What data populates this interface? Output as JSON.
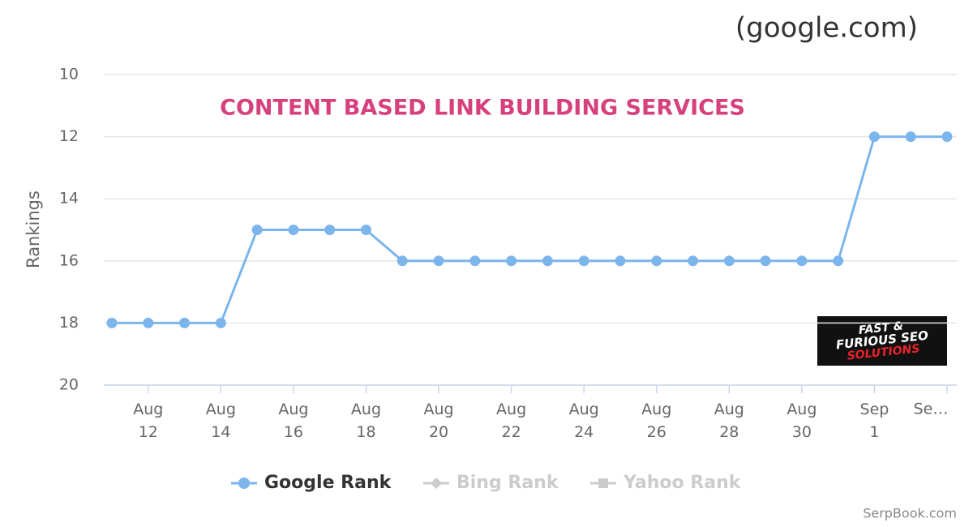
{
  "chart_data": {
    "type": "line",
    "header": "(google.com)",
    "title": "CONTENT BASED LINK BUILDING SERVICES",
    "y_label": "Rankings",
    "credit": "SerpBook.com",
    "logo": [
      "FAST &",
      "FURIOUS SEO",
      "SOLUTIONS"
    ],
    "categories": [
      null,
      "Aug 12",
      null,
      "Aug 14",
      null,
      "Aug 16",
      null,
      "Aug 18",
      null,
      "Aug 20",
      null,
      "Aug 22",
      null,
      "Aug 24",
      null,
      "Aug 26",
      null,
      "Aug 28",
      null,
      "Aug 30",
      null,
      "Sep 1",
      null,
      "Se…"
    ],
    "series": [
      {
        "name": "Google Rank",
        "color": "#7cb5ec",
        "marker": "circle",
        "values": [
          18,
          18,
          18,
          18,
          15,
          15,
          15,
          15,
          16,
          16,
          16,
          16,
          16,
          16,
          16,
          16,
          16,
          16,
          16,
          16,
          16,
          12,
          12,
          12
        ]
      },
      {
        "name": "Bing Rank",
        "color": "#cccccc",
        "marker": "diamond",
        "hidden": true
      },
      {
        "name": "Yahoo Rank",
        "color": "#cccccc",
        "marker": "square",
        "hidden": true
      }
    ],
    "ylim": [
      10,
      20
    ],
    "y_reversed": true,
    "yticks": [
      10,
      12,
      14,
      16,
      18,
      20
    ],
    "grid": true,
    "legend": "bottom"
  }
}
